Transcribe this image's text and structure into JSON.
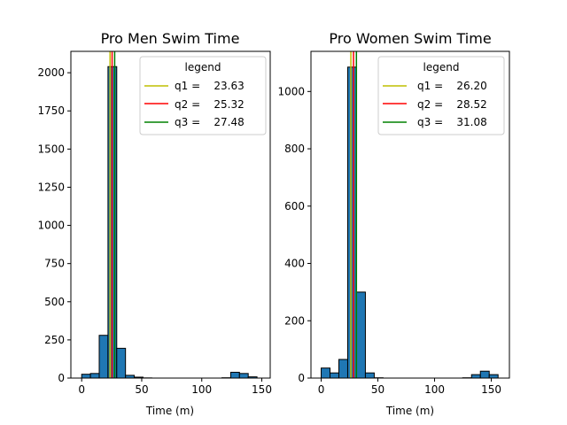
{
  "chart_data": [
    {
      "type": "bar",
      "title": "Pro Men Swim Time",
      "xlabel": "Time (m)",
      "ylabel": "",
      "xlim": [
        -9,
        157
      ],
      "ylim": [
        0,
        2140
      ],
      "xticks": [
        0,
        50,
        100,
        150
      ],
      "yticks": [
        0,
        250,
        500,
        750,
        1000,
        1250,
        1500,
        1750,
        2000
      ],
      "bar_color": "#1f77b4",
      "bars": [
        {
          "x0": 0,
          "x1": 7.3,
          "count": 25
        },
        {
          "x0": 7.3,
          "x1": 14.6,
          "count": 30
        },
        {
          "x0": 14.6,
          "x1": 21.9,
          "count": 280
        },
        {
          "x0": 21.9,
          "x1": 29.2,
          "count": 2040
        },
        {
          "x0": 29.2,
          "x1": 36.5,
          "count": 195
        },
        {
          "x0": 36.5,
          "x1": 43.8,
          "count": 18
        },
        {
          "x0": 43.8,
          "x1": 51.1,
          "count": 6
        },
        {
          "x0": 51.1,
          "x1": 58.4,
          "count": 1
        },
        {
          "x0": 116.8,
          "x1": 124.1,
          "count": 2
        },
        {
          "x0": 124.1,
          "x1": 131.4,
          "count": 38
        },
        {
          "x0": 131.4,
          "x1": 138.7,
          "count": 30
        },
        {
          "x0": 138.7,
          "x1": 146.0,
          "count": 8
        }
      ],
      "vlines": [
        {
          "label": "q1 =    23.63",
          "x": 23.63,
          "color": "#bfbf00"
        },
        {
          "label": "q2 =    25.32",
          "x": 25.32,
          "color": "#ff0000"
        },
        {
          "label": "q3 =    27.48",
          "x": 27.48,
          "color": "#008000"
        }
      ],
      "legend_title": "legend",
      "legend_position": "top-right"
    },
    {
      "type": "bar",
      "title": "Pro Women Swim Time",
      "xlabel": "Time (m)",
      "ylabel": "",
      "xlim": [
        -9,
        166
      ],
      "ylim": [
        0,
        1140
      ],
      "xticks": [
        0,
        50,
        100,
        150
      ],
      "yticks": [
        0,
        200,
        400,
        600,
        800,
        1000
      ],
      "bar_color": "#1f77b4",
      "bars": [
        {
          "x0": 0,
          "x1": 7.8,
          "count": 35
        },
        {
          "x0": 7.8,
          "x1": 15.6,
          "count": 18
        },
        {
          "x0": 15.6,
          "x1": 23.4,
          "count": 65
        },
        {
          "x0": 23.4,
          "x1": 31.2,
          "count": 1085
        },
        {
          "x0": 31.2,
          "x1": 39.0,
          "count": 300
        },
        {
          "x0": 39.0,
          "x1": 46.8,
          "count": 18
        },
        {
          "x0": 46.8,
          "x1": 54.6,
          "count": 1
        },
        {
          "x0": 124.8,
          "x1": 132.6,
          "count": 1
        },
        {
          "x0": 132.6,
          "x1": 140.4,
          "count": 12
        },
        {
          "x0": 140.4,
          "x1": 148.2,
          "count": 24
        },
        {
          "x0": 148.2,
          "x1": 156.0,
          "count": 12
        }
      ],
      "vlines": [
        {
          "label": "q1 =    26.20",
          "x": 26.2,
          "color": "#bfbf00"
        },
        {
          "label": "q2 =    28.52",
          "x": 28.52,
          "color": "#ff0000"
        },
        {
          "label": "q3 =    31.08",
          "x": 31.08,
          "color": "#008000"
        }
      ],
      "legend_title": "legend",
      "legend_position": "top-right"
    }
  ]
}
